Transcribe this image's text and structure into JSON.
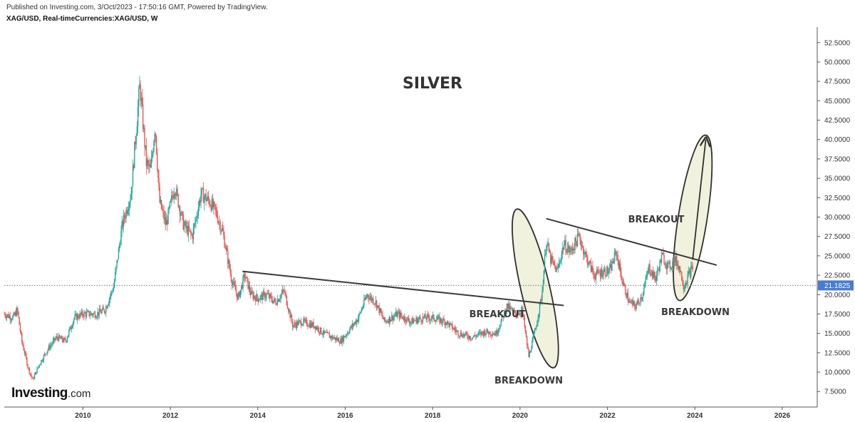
{
  "header": {
    "published": "Published on Investing.com, 3/Oct/2023 - 17:50:16 GMT, Powered by TradingView.",
    "symbol": "XAG/USD, Real-timeCurrencies:XAG/USD, W"
  },
  "logo": {
    "brand": "Investing",
    "suffix": ".com"
  },
  "colors": {
    "up": "#26a69a",
    "down": "#ef5350",
    "line": "#3a3a3a",
    "ellipse_fill": "#eef0d8",
    "ellipse_stroke": "#2f2f2f",
    "price_line": "#4a7bd0",
    "price_label_bg": "#4a7bd0"
  },
  "chart_data": {
    "type": "candlestick",
    "title": "SILVER",
    "interval": "W",
    "current_price": 21.1825,
    "current_price_label": "21.1825",
    "y_ticks": [
      "7.5000",
      "10.0000",
      "12.5000",
      "15.0000",
      "17.5000",
      "20.0000",
      "22.5000",
      "25.0000",
      "27.5000",
      "30.0000",
      "32.5000",
      "35.0000",
      "37.5000",
      "40.0000",
      "42.5000",
      "45.0000",
      "47.5000",
      "50.0000",
      "52.5000"
    ],
    "x_ticks": [
      "2010",
      "2012",
      "2014",
      "2016",
      "2018",
      "2020",
      "2022",
      "2024",
      "2026"
    ],
    "ylim": [
      5.5,
      54.5
    ],
    "xlim": [
      2008.2,
      2026.8
    ],
    "price_path": [
      [
        2008.2,
        17.5
      ],
      [
        2008.4,
        17.0
      ],
      [
        2008.5,
        18.0
      ],
      [
        2008.6,
        14.0
      ],
      [
        2008.75,
        10.5
      ],
      [
        2008.85,
        9.0
      ],
      [
        2009.0,
        11.0
      ],
      [
        2009.2,
        13.0
      ],
      [
        2009.4,
        14.5
      ],
      [
        2009.6,
        14.0
      ],
      [
        2009.8,
        17.0
      ],
      [
        2010.0,
        17.5
      ],
      [
        2010.3,
        17.5
      ],
      [
        2010.5,
        18.0
      ],
      [
        2010.7,
        21.0
      ],
      [
        2010.9,
        29.0
      ],
      [
        2011.1,
        33.0
      ],
      [
        2011.3,
        47.0
      ],
      [
        2011.45,
        37.0
      ],
      [
        2011.55,
        36.0
      ],
      [
        2011.65,
        42.0
      ],
      [
        2011.75,
        32.0
      ],
      [
        2011.9,
        29.0
      ],
      [
        2012.1,
        34.0
      ],
      [
        2012.3,
        29.0
      ],
      [
        2012.5,
        27.5
      ],
      [
        2012.7,
        33.0
      ],
      [
        2012.9,
        32.0
      ],
      [
        2013.05,
        30.5
      ],
      [
        2013.2,
        28.0
      ],
      [
        2013.4,
        22.0
      ],
      [
        2013.55,
        19.5
      ],
      [
        2013.7,
        22.5
      ],
      [
        2013.85,
        20.0
      ],
      [
        2014.0,
        19.5
      ],
      [
        2014.2,
        20.0
      ],
      [
        2014.4,
        19.0
      ],
      [
        2014.6,
        20.5
      ],
      [
        2014.8,
        16.0
      ],
      [
        2015.0,
        16.5
      ],
      [
        2015.3,
        16.0
      ],
      [
        2015.5,
        15.0
      ],
      [
        2015.7,
        14.5
      ],
      [
        2015.9,
        14.0
      ],
      [
        2016.1,
        15.5
      ],
      [
        2016.3,
        17.0
      ],
      [
        2016.5,
        20.0
      ],
      [
        2016.7,
        19.0
      ],
      [
        2016.9,
        16.5
      ],
      [
        2017.2,
        17.5
      ],
      [
        2017.5,
        16.5
      ],
      [
        2017.8,
        17.0
      ],
      [
        2018.0,
        17.0
      ],
      [
        2018.3,
        16.5
      ],
      [
        2018.6,
        15.0
      ],
      [
        2018.9,
        14.5
      ],
      [
        2019.2,
        15.2
      ],
      [
        2019.45,
        15.0
      ],
      [
        2019.6,
        17.0
      ],
      [
        2019.7,
        18.5
      ],
      [
        2019.9,
        17.5
      ],
      [
        2020.05,
        18.0
      ],
      [
        2020.2,
        12.0
      ],
      [
        2020.35,
        15.5
      ],
      [
        2020.5,
        20.0
      ],
      [
        2020.6,
        27.0
      ],
      [
        2020.7,
        24.5
      ],
      [
        2020.85,
        23.0
      ],
      [
        2021.0,
        26.5
      ],
      [
        2021.15,
        25.5
      ],
      [
        2021.35,
        27.5
      ],
      [
        2021.5,
        25.0
      ],
      [
        2021.7,
        22.5
      ],
      [
        2021.9,
        23.0
      ],
      [
        2022.05,
        23.0
      ],
      [
        2022.2,
        25.5
      ],
      [
        2022.35,
        21.5
      ],
      [
        2022.5,
        19.0
      ],
      [
        2022.65,
        18.5
      ],
      [
        2022.8,
        20.0
      ],
      [
        2022.95,
        23.5
      ],
      [
        2023.1,
        22.0
      ],
      [
        2023.25,
        25.0
      ],
      [
        2023.4,
        23.5
      ],
      [
        2023.55,
        24.5
      ],
      [
        2023.65,
        23.5
      ],
      [
        2023.75,
        21.0
      ],
      [
        2023.85,
        22.5
      ],
      [
        2023.95,
        23.5
      ]
    ],
    "annotations": {
      "title": "SILVER",
      "breakout_1": "BREAKOUT",
      "breakdown_1": "BREAKDOWN",
      "breakout_2": "BREAKOUT",
      "breakdown_2": "BREAKDOWN"
    },
    "trendlines": [
      {
        "from": [
          2013.65,
          23.0
        ],
        "to": [
          2021.0,
          18.6
        ]
      },
      {
        "from": [
          2020.6,
          29.8
        ],
        "to": [
          2024.5,
          23.8
        ]
      }
    ],
    "ellipses": [
      {
        "center": [
          2020.35,
          20.8
        ],
        "rx_years": 0.33,
        "ry_price": 10.5,
        "tilt_deg": -13
      },
      {
        "center": [
          2023.95,
          29.9
        ],
        "rx_years": 0.33,
        "ry_price": 10.8,
        "tilt_deg": 9
      }
    ],
    "projection_arrow": {
      "from": [
        2023.95,
        24.5
      ],
      "to": [
        2024.25,
        40.0
      ]
    }
  }
}
